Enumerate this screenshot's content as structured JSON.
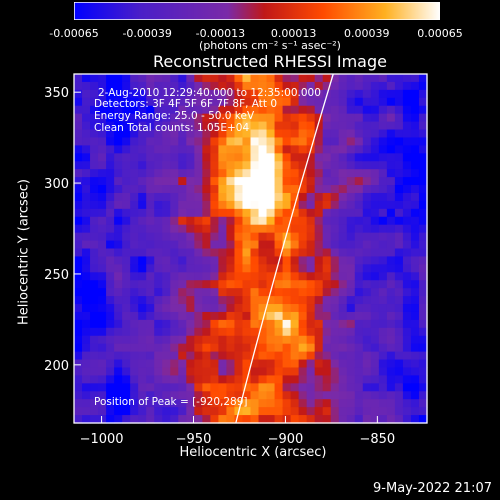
{
  "colorbar": {
    "ticks": [
      "-0.00065",
      "-0.00039",
      "-0.00013",
      "0.00013",
      "0.00039",
      "0.00065"
    ],
    "unit": "(photons cm⁻² s⁻¹ asec⁻²)",
    "colors": [
      "#0000ff",
      "#5a1eb0",
      "#7a2aa8",
      "#c01818",
      "#ff6a00",
      "#ffd24a",
      "#ffffff"
    ]
  },
  "annotations": {
    "time": "2-Aug-2010 12:29:40.000 to 12:35:00.000",
    "detectors": "Detectors: 3F 4F 5F 6F 7F 8F, Att 0",
    "energy": "Energy Range: 25.0 - 50.0 keV",
    "clean": "Clean     Total counts: 1.05E+04",
    "peak": "Position of Peak = [-920,289]"
  },
  "timestamp": "9-May-2022 21:07",
  "chart_data": {
    "type": "heatmap",
    "title": "Reconstructed RHESSI Image",
    "xlabel": "Heliocentric X (arcsec)",
    "ylabel": "Heliocentric Y (arcsec)",
    "xlim": [
      -1015,
      -823
    ],
    "ylim": [
      168,
      360
    ],
    "xticks": [
      -1000,
      -950,
      -900,
      -850
    ],
    "yticks": [
      200,
      250,
      300,
      350
    ],
    "colorbar_range": [
      -0.00065,
      0.00065
    ],
    "peak_position": [
      -920,
      289
    ],
    "limb_line": [
      [
        -927,
        168
      ],
      [
        -874,
        360
      ]
    ],
    "grid": false
  }
}
